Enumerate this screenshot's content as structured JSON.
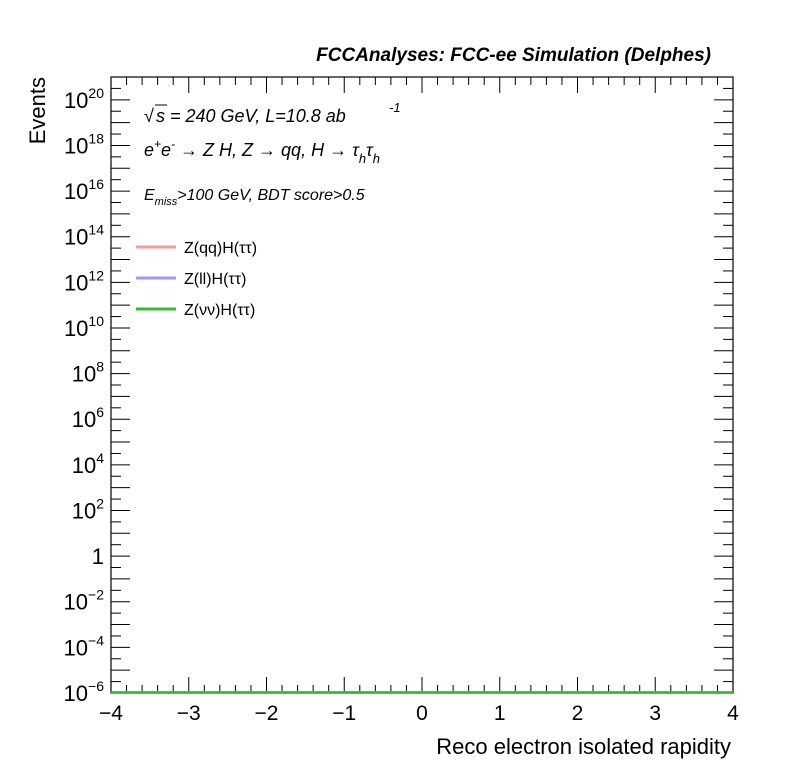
{
  "header": {
    "title": "FCCAnalyses: FCC-ee Simulation (Delphes)"
  },
  "annotations": {
    "energy_lumi": {
      "sqrt": "√",
      "s": "s",
      "rest": " = 240 GeV, L=10.8 ab",
      "lumi_exp": "-1"
    },
    "process": {
      "e": "e",
      "plus": "+",
      "e2": "e",
      "minus": "-",
      "arrow1": " → Z H, Z  → qq, H  → ",
      "tau1": "τ",
      "h1": "h",
      "tau2": "τ",
      "h2": "h"
    },
    "cuts": {
      "E": "E",
      "miss": "miss",
      "rest": ">100 GeV, BDT score>0.5"
    }
  },
  "legend": {
    "position": "top-left",
    "entries": [
      {
        "label": "Z(qq)H(ττ)",
        "color": "#ff9999"
      },
      {
        "label": "Z(ll)H(ττ)",
        "color": "#9999ff"
      },
      {
        "label": "Z(νν)H(ττ)",
        "color": "#33bb33"
      }
    ]
  },
  "chart_data": {
    "type": "line",
    "title": "FCCAnalyses: FCC-ee Simulation (Delphes)",
    "xlabel": "Reco electron isolated rapidity",
    "ylabel": "Events",
    "xlim": [
      -4,
      4
    ],
    "ylim_log10": [
      -6,
      21
    ],
    "yscale": "log",
    "x_ticks": [
      "−4",
      "−3",
      "−2",
      "−1",
      "0",
      "1",
      "2",
      "3",
      "4"
    ],
    "y_ticks": [
      {
        "base": "10",
        "exp": "−6",
        "value_log10": -6
      },
      {
        "base": "10",
        "exp": "−4",
        "value_log10": -4
      },
      {
        "base": "10",
        "exp": "−2",
        "value_log10": -2
      },
      {
        "base": "1",
        "exp": "",
        "value_log10": 0
      },
      {
        "base": "10",
        "exp": "2",
        "value_log10": 2
      },
      {
        "base": "10",
        "exp": "4",
        "value_log10": 4
      },
      {
        "base": "10",
        "exp": "6",
        "value_log10": 6
      },
      {
        "base": "10",
        "exp": "8",
        "value_log10": 8
      },
      {
        "base": "10",
        "exp": "10",
        "value_log10": 10
      },
      {
        "base": "10",
        "exp": "12",
        "value_log10": 12
      },
      {
        "base": "10",
        "exp": "14",
        "value_log10": 14
      },
      {
        "base": "10",
        "exp": "16",
        "value_log10": 16
      },
      {
        "base": "10",
        "exp": "18",
        "value_log10": 18
      },
      {
        "base": "10",
        "exp": "20",
        "value_log10": 20
      }
    ],
    "series": [
      {
        "name": "Z(qq)H(ττ)",
        "color": "#ff9999",
        "x": [
          -4,
          4
        ],
        "y": [
          1e-06,
          1e-06
        ]
      },
      {
        "name": "Z(ll)H(ττ)",
        "color": "#9999ff",
        "x": [
          -4,
          4
        ],
        "y": [
          1e-06,
          1e-06
        ]
      },
      {
        "name": "Z(νν)H(ττ)",
        "color": "#33bb33",
        "x": [
          -4,
          4
        ],
        "y": [
          1e-06,
          1e-06
        ]
      }
    ],
    "grid": false
  }
}
